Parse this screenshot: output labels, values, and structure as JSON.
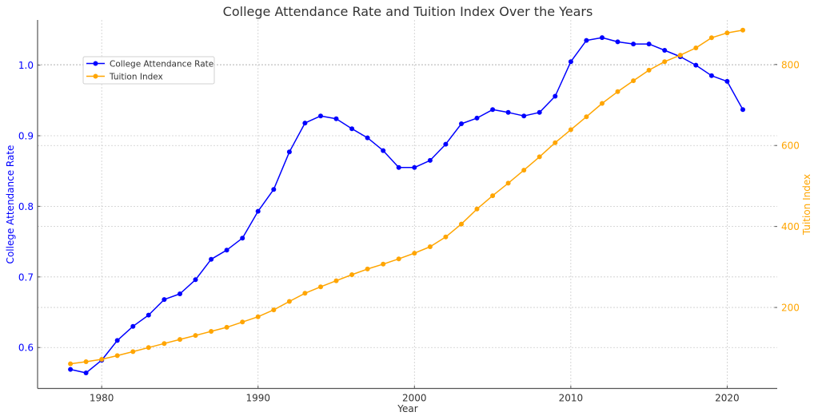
{
  "chart_data": {
    "type": "line",
    "title": "College Attendance Rate and Tuition Index Over the Years",
    "xlabel": "Year",
    "ylabel_left": "College Attendance Rate",
    "ylabel_right": "Tuition Index",
    "xlim": [
      1975.9,
      2023.2
    ],
    "ylim_left": [
      0.542,
      1.064
    ],
    "ylim_right": [
      0,
      910
    ],
    "grid": true,
    "legend_position": "upper-left",
    "x_ticks": [
      1980,
      1990,
      2000,
      2010,
      2020
    ],
    "x_tick_labels": [
      "1980",
      "1990",
      "2000",
      "2010",
      "2020"
    ],
    "y_left_ticks": [
      0.6,
      0.7,
      0.8,
      0.9,
      1.0
    ],
    "y_left_tick_labels": [
      "0.6",
      "0.7",
      "0.8",
      "0.9",
      "1.0"
    ],
    "y_right_ticks": [
      200,
      400,
      600,
      800
    ],
    "y_right_tick_labels": [
      "200",
      "400",
      "600",
      "800"
    ],
    "x": [
      1978,
      1979,
      1980,
      1981,
      1982,
      1983,
      1984,
      1985,
      1986,
      1987,
      1988,
      1989,
      1990,
      1991,
      1992,
      1993,
      1994,
      1995,
      1996,
      1997,
      1998,
      1999,
      2000,
      2001,
      2002,
      2003,
      2004,
      2005,
      2006,
      2007,
      2008,
      2009,
      2010,
      2011,
      2012,
      2013,
      2014,
      2015,
      2016,
      2017,
      2018,
      2019,
      2020,
      2021
    ],
    "series": [
      {
        "name": "College Attendance Rate",
        "axis": "left",
        "color": "#0000ff",
        "values": [
          0.569,
          0.564,
          0.582,
          0.61,
          0.63,
          0.646,
          0.668,
          0.676,
          0.696,
          0.725,
          0.738,
          0.755,
          0.793,
          0.824,
          0.877,
          0.918,
          0.928,
          0.924,
          0.91,
          0.897,
          0.879,
          0.855,
          0.855,
          0.865,
          0.888,
          0.917,
          0.925,
          0.937,
          0.933,
          0.928,
          0.933,
          0.956,
          1.005,
          1.035,
          1.039,
          1.033,
          1.03,
          1.03,
          1.021,
          1.012,
          1.0,
          0.985,
          0.977,
          0.937
        ]
      },
      {
        "name": "Tuition Index",
        "axis": "right",
        "color": "#ffa500",
        "values": [
          61,
          66,
          72,
          81,
          91,
          101,
          111,
          121,
          131,
          141,
          151,
          164,
          177,
          194,
          215,
          235,
          251,
          266,
          281,
          295,
          307,
          320,
          334,
          350,
          374,
          406,
          443,
          476,
          507,
          539,
          572,
          607,
          639,
          671,
          704,
          733,
          760,
          786,
          807,
          823,
          841,
          866,
          878,
          885
        ]
      }
    ]
  },
  "colors": {
    "left_axis": "#0000ff",
    "right_axis": "#ffa500",
    "grid": "#cccccc",
    "spine": "#555555"
  }
}
